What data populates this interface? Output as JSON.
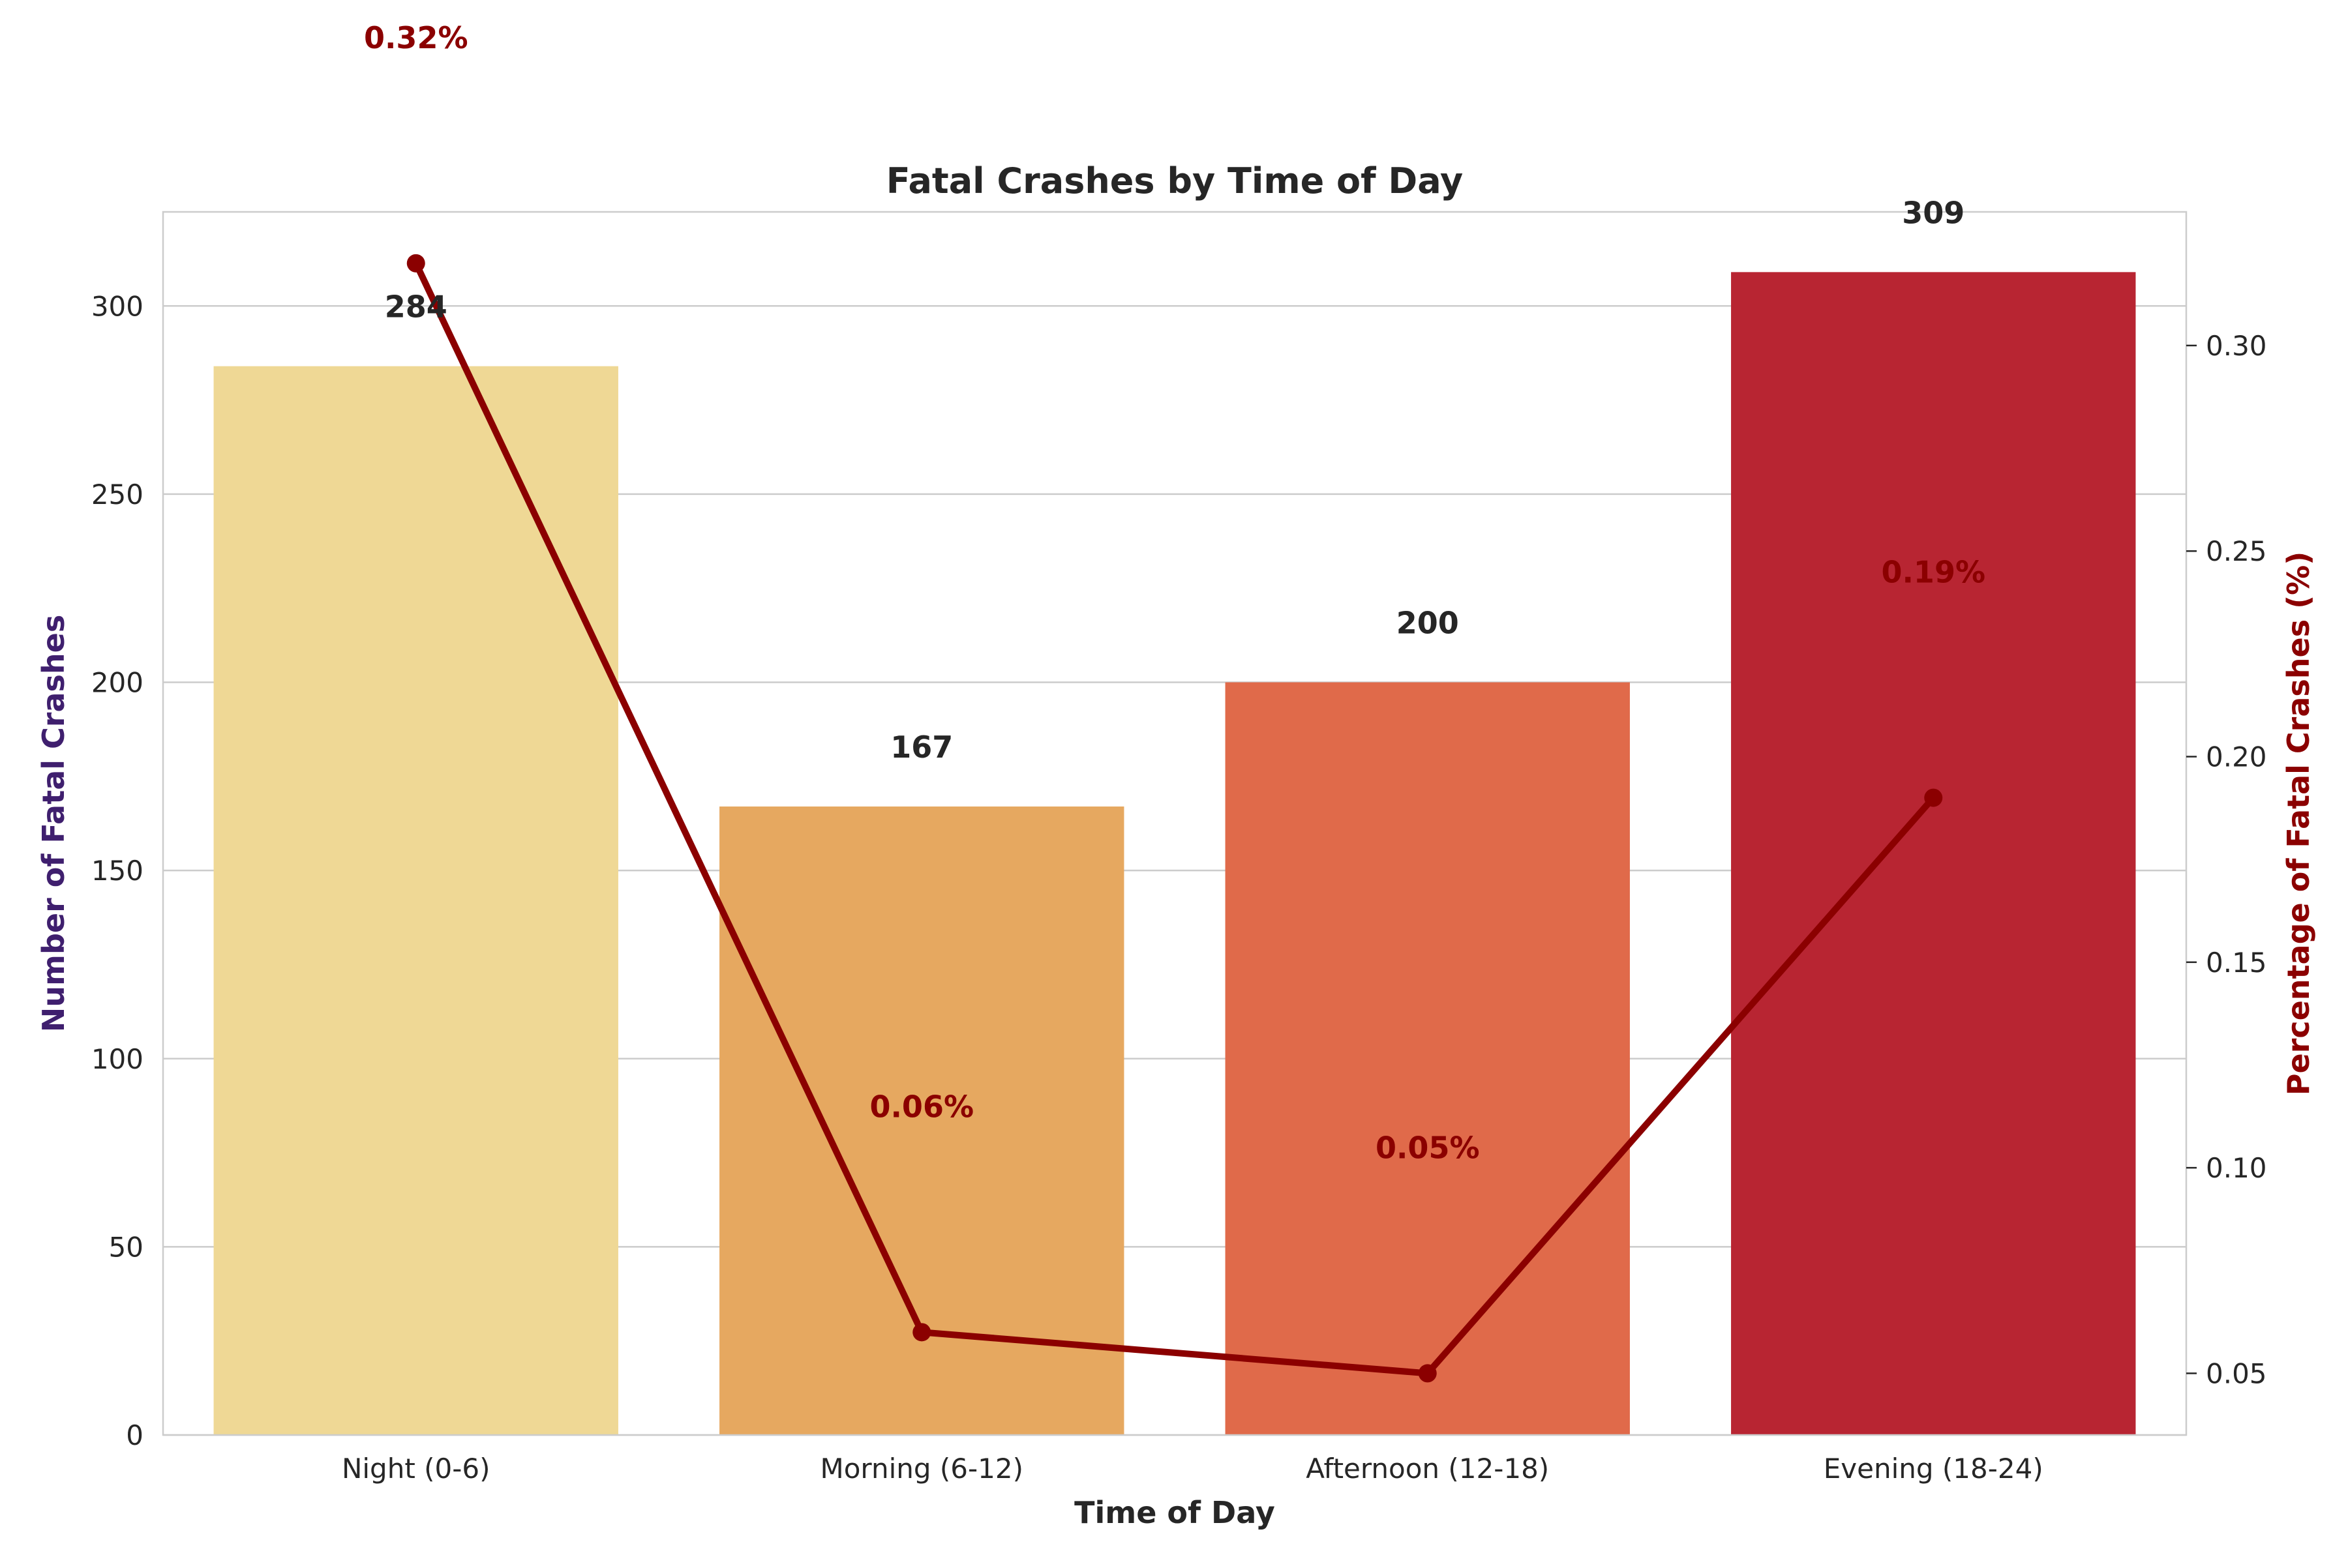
{
  "chart_data": {
    "type": "bar",
    "title": "Fatal Crashes by Time of Day",
    "xlabel": "Time of Day",
    "ylabel": "Number of Fatal Crashes",
    "y2label": "Percentage of Fatal Crashes (%)",
    "categories": [
      "Night (0-6)",
      "Morning (6-12)",
      "Afternoon (12-18)",
      "Evening (18-24)"
    ],
    "values": [
      284,
      167,
      200,
      309
    ],
    "value_labels": [
      "284",
      "167",
      "200",
      "309"
    ],
    "bar_colors": [
      "#efd895",
      "#e6a860",
      "#e06a4a",
      "#b82532"
    ],
    "ylim": [
      0,
      325
    ],
    "yticks": [
      0,
      50,
      100,
      150,
      200,
      250,
      300
    ],
    "ytick_labels": [
      "0",
      "50",
      "100",
      "150",
      "200",
      "250",
      "300"
    ],
    "grid": true,
    "line_series": {
      "axis": "secondary",
      "color": "#8b0000",
      "values": [
        0.32,
        0.06,
        0.05,
        0.19
      ],
      "value_labels": [
        "0.32%",
        "0.06%",
        "0.05%",
        "0.19%"
      ]
    },
    "y2lim": [
      0.035,
      0.3325
    ],
    "y2ticks": [
      0.05,
      0.1,
      0.15,
      0.2,
      0.25,
      0.3
    ],
    "y2tick_labels": [
      "0.05",
      "0.10",
      "0.15",
      "0.20",
      "0.25",
      "0.30"
    ],
    "colors": {
      "ylabel": "#3f1f6e",
      "y2label": "#8b0000",
      "text": "#262626"
    }
  }
}
